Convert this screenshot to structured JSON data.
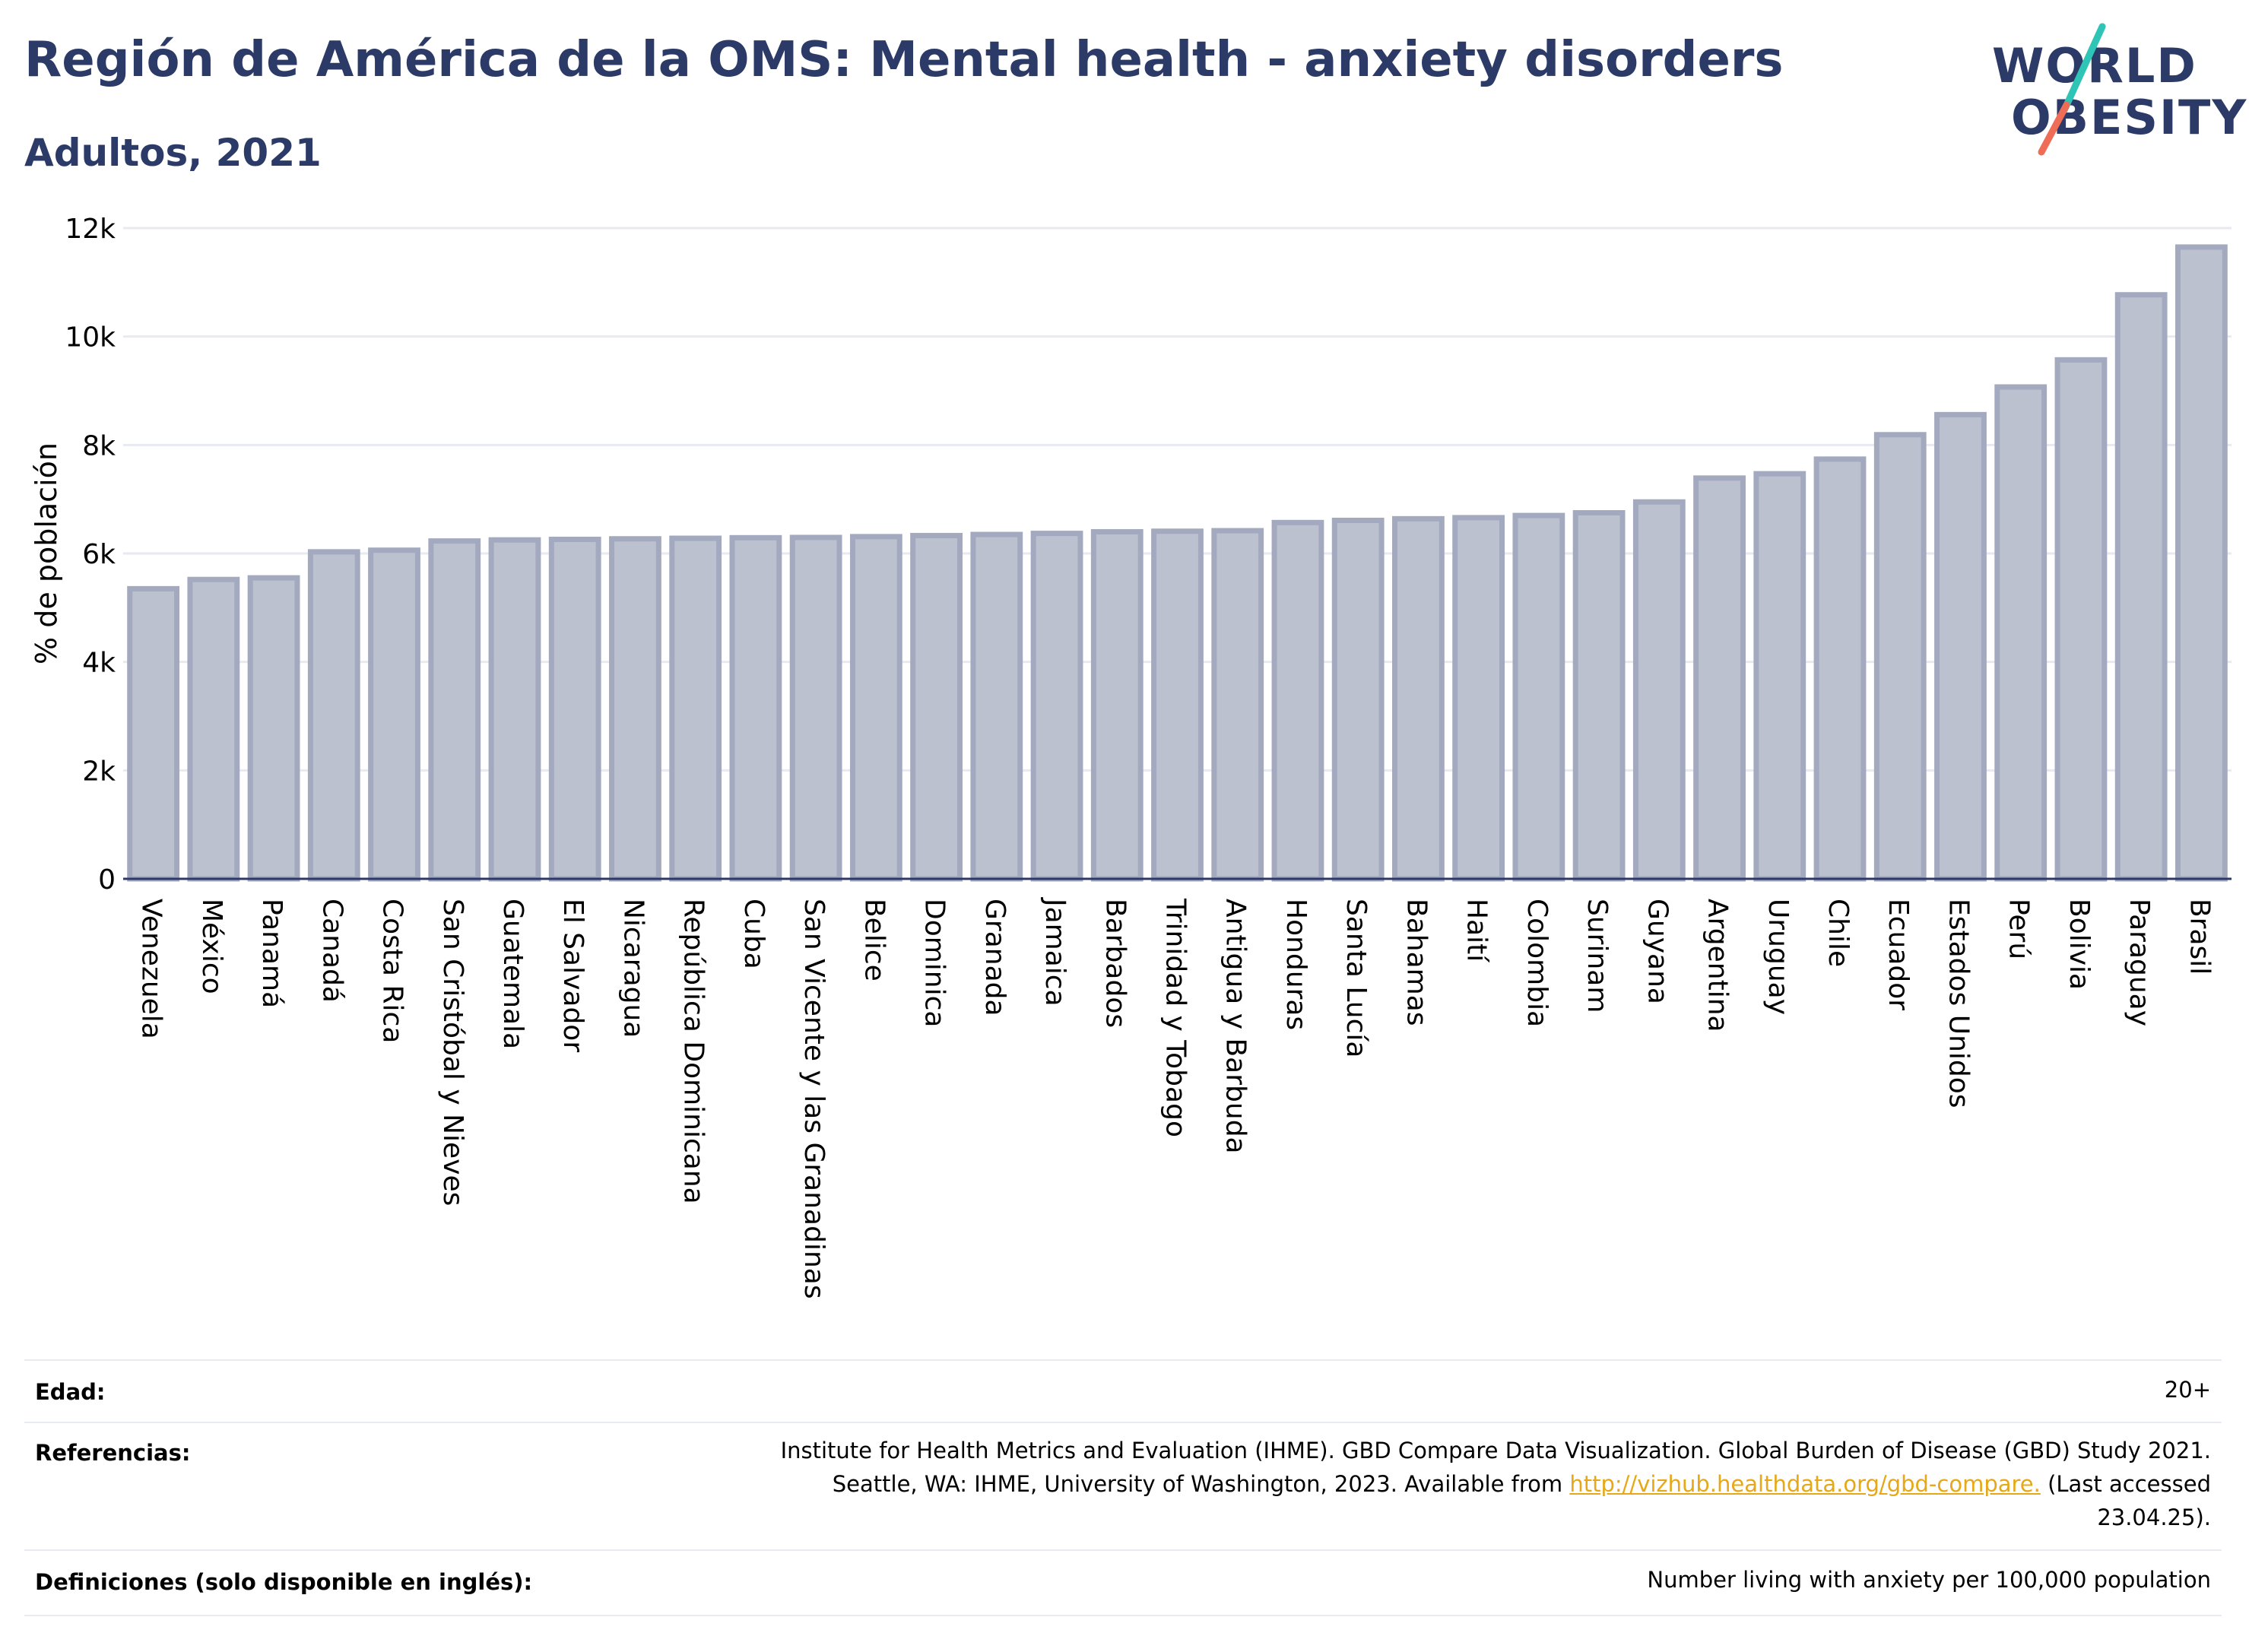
{
  "header": {
    "title": "Región de América de la OMS: Mental health - anxiety disorders",
    "subtitle": "Adultos, 2021"
  },
  "logo": {
    "line1": "WORLD",
    "line2": "OBESITY"
  },
  "colors": {
    "title": "#2b3a67",
    "bar_fill": "#bcc1d0",
    "bar_stroke": "#a3a9be",
    "grid": "#e8eaf2",
    "link": "#e6a817",
    "logo_teal": "#2ec4b6",
    "logo_coral": "#ef6c57"
  },
  "chart_data": {
    "type": "bar",
    "ylabel": "% de población",
    "xlabel": "",
    "ylim": [
      0,
      12000
    ],
    "yticks": [
      0,
      2000,
      4000,
      6000,
      8000,
      10000,
      12000
    ],
    "ytick_labels": [
      "0",
      "2k",
      "4k",
      "6k",
      "8k",
      "10k",
      "12k"
    ],
    "grid": true,
    "categories": [
      "Venezuela",
      "México",
      "Panamá",
      "Canadá",
      "Costa Rica",
      "San Cristóbal y Nieves",
      "Guatemala",
      "El Salvador",
      "Nicaragua",
      "República Dominicana",
      "Cuba",
      "San Vicente y las Granadinas",
      "Belice",
      "Dominica",
      "Granada",
      "Jamaica",
      "Barbados",
      "Trinidad y Tobago",
      "Antigua y Barbuda",
      "Honduras",
      "Santa Lucía",
      "Bahamas",
      "Haití",
      "Colombia",
      "Surinam",
      "Guyana",
      "Argentina",
      "Uruguay",
      "Chile",
      "Ecuador",
      "Estados Unidos",
      "Perú",
      "Bolivia",
      "Paraguay",
      "Brasil"
    ],
    "values": [
      5350,
      5520,
      5550,
      6030,
      6060,
      6230,
      6250,
      6260,
      6270,
      6280,
      6290,
      6295,
      6310,
      6330,
      6350,
      6370,
      6400,
      6410,
      6420,
      6570,
      6610,
      6640,
      6660,
      6700,
      6750,
      6950,
      7390,
      7470,
      7740,
      8190,
      8560,
      9070,
      9570,
      10770,
      11650
    ]
  },
  "footer": {
    "age_label": "Edad:",
    "age_value": "20+",
    "refs_label": "Referencias:",
    "refs_line1": "Institute for Health Metrics and Evaluation (IHME). GBD Compare Data Visualization. Global Burden of Disease (GBD) Study 2021.",
    "refs_line2_pre": "Seattle, WA: IHME, University of Washington, 2023. Available from ",
    "refs_link": "http://vizhub.healthdata.org/gbd-compare.",
    "refs_line2_post": " (Last accessed",
    "refs_line3": "23.04.25).",
    "def_label": "Definiciones (solo disponible en inglés):",
    "def_value": "Number living with anxiety per 100,000 population"
  }
}
